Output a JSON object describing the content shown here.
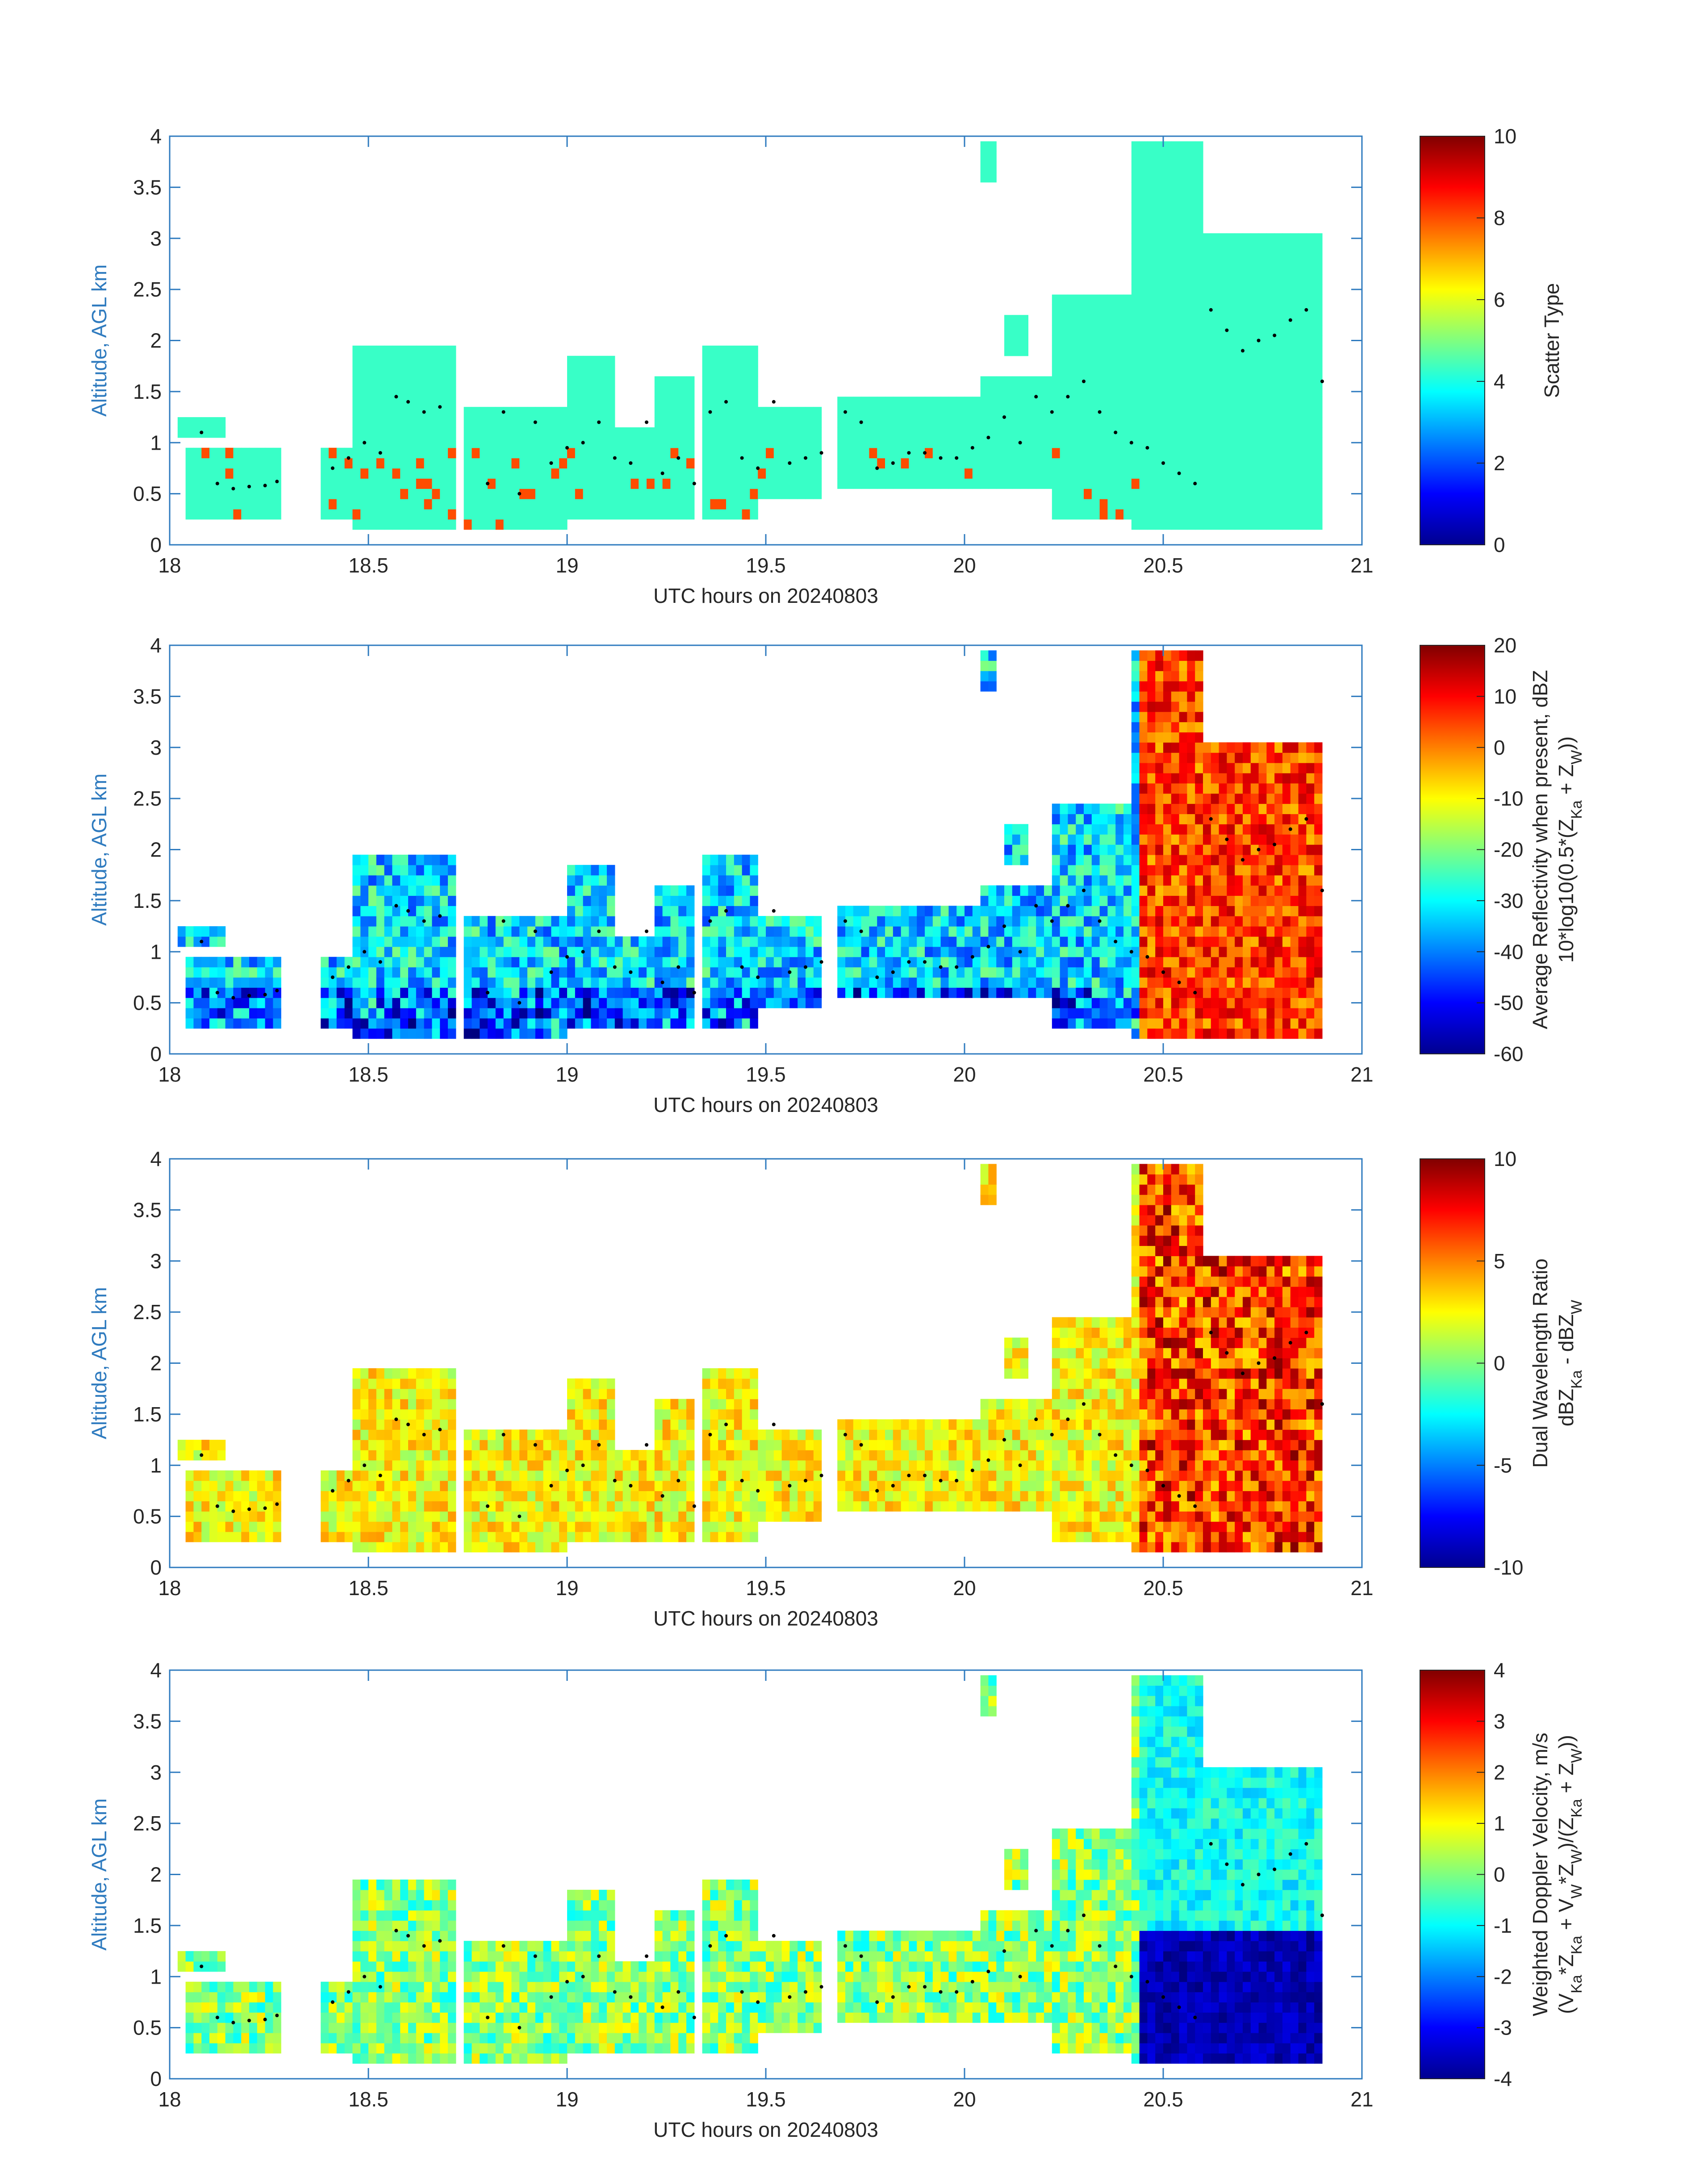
{
  "chart_data": [
    {
      "type": "heatmap",
      "xlabel": "UTC hours on 20240803",
      "ylabel": "Altitude, AGL km",
      "xlim": [
        18,
        21
      ],
      "ylim": [
        0,
        4
      ],
      "xticks": [
        "18",
        "18.5",
        "19",
        "19.5",
        "20",
        "20.5",
        "21"
      ],
      "yticks": [
        "0",
        "0.5",
        "1",
        "1.5",
        "2",
        "2.5",
        "3",
        "3.5",
        "4"
      ],
      "colorbar": {
        "label_lines": [
          "Scatter Type"
        ],
        "min": 0,
        "max": 10,
        "ticks": [
          "0",
          "2",
          "4",
          "6",
          "8",
          "10"
        ]
      },
      "description": "Scatter type classification; dominant class ~4 with sparse class ~8 columns"
    },
    {
      "type": "heatmap",
      "xlabel": "UTC hours on 20240803",
      "ylabel": "Altitude, AGL km",
      "xlim": [
        18,
        21
      ],
      "ylim": [
        0,
        4
      ],
      "xticks": [
        "18",
        "18.5",
        "19",
        "19.5",
        "20",
        "20.5",
        "21"
      ],
      "yticks": [
        "0",
        "0.5",
        "1",
        "1.5",
        "2",
        "2.5",
        "3",
        "3.5",
        "4"
      ],
      "colorbar": {
        "label_lines": [
          "Average Reflectivity when present, dBZ",
          "10*log10(0.5*(Z",
          "Ka",
          " + Z",
          "W",
          "))"
        ],
        "min": -60,
        "max": 20,
        "ticks": [
          "-60",
          "-50",
          "-40",
          "-30",
          "-20",
          "-10",
          "0",
          "10",
          "20"
        ]
      },
      "description": "Reflectivity mostly -50 to -20 dBZ before 20.3 h, 0 to 20 dBZ in deep cloud after 20.4 h"
    },
    {
      "type": "heatmap",
      "xlabel": "UTC hours on 20240803",
      "ylabel": "Altitude, AGL km",
      "xlim": [
        18,
        21
      ],
      "ylim": [
        0,
        4
      ],
      "xticks": [
        "18",
        "18.5",
        "19",
        "19.5",
        "20",
        "20.5",
        "21"
      ],
      "yticks": [
        "0",
        "0.5",
        "1",
        "1.5",
        "2",
        "2.5",
        "3",
        "3.5",
        "4"
      ],
      "colorbar": {
        "label_lines": [
          "Dual Wavelength Ratio",
          "dBZ",
          "Ka",
          " - dBZ",
          "W"
        ],
        "min": -10,
        "max": 10,
        "ticks": [
          "-10",
          "-5",
          "0",
          "5",
          "10"
        ]
      },
      "description": "DWR mostly 0 to 4 dB, up to 10 dB in deep cloud after 20.4 h"
    },
    {
      "type": "heatmap",
      "xlabel": "UTC hours on 20240803",
      "ylabel": "Altitude, AGL km",
      "xlim": [
        18,
        21
      ],
      "ylim": [
        0,
        4
      ],
      "xticks": [
        "18",
        "18.5",
        "19",
        "19.5",
        "20",
        "20.5",
        "21"
      ],
      "yticks": [
        "0",
        "0.5",
        "1",
        "1.5",
        "2",
        "2.5",
        "3",
        "3.5",
        "4"
      ],
      "colorbar": {
        "label_lines": [
          "Weighted Doppler Velocity, m/s",
          "(V",
          "Ka",
          "*Z",
          "Ka",
          " + V",
          "W",
          "*Z",
          "W",
          ")/(Z",
          "Ka",
          " + Z",
          "W",
          "))"
        ],
        "min": -4,
        "max": 4,
        "ticks": [
          "-4",
          "-3",
          "-2",
          "-1",
          "0",
          "1",
          "2",
          "3",
          "4"
        ]
      },
      "description": "Doppler velocity mostly -1 to 1 m/s, strongly negative (~-4) below 1.4 km after 20.4 h"
    }
  ],
  "cloud_boundary_dots": {
    "t": [
      18.08,
      18.12,
      18.16,
      18.2,
      18.24,
      18.27,
      18.41,
      18.45,
      18.49,
      18.53,
      18.57,
      18.6,
      18.64,
      18.68,
      18.8,
      18.84,
      18.88,
      18.92,
      18.96,
      19.0,
      19.04,
      19.08,
      19.12,
      19.16,
      19.2,
      19.24,
      19.28,
      19.32,
      19.36,
      19.4,
      19.44,
      19.48,
      19.52,
      19.56,
      19.6,
      19.64,
      19.7,
      19.74,
      19.78,
      19.82,
      19.86,
      19.9,
      19.94,
      19.98,
      20.02,
      20.06,
      20.1,
      20.14,
      20.18,
      20.22,
      20.26,
      20.3,
      20.34,
      20.38,
      20.42,
      20.46,
      20.5,
      20.54,
      20.58,
      20.62,
      20.66,
      20.7,
      20.74,
      20.78,
      20.82,
      20.86,
      20.9
    ],
    "h": [
      1.1,
      0.6,
      0.55,
      0.57,
      0.58,
      0.62,
      0.75,
      0.85,
      1.0,
      0.9,
      1.45,
      1.4,
      1.3,
      1.35,
      0.6,
      1.3,
      0.5,
      1.2,
      0.8,
      0.95,
      1.0,
      1.2,
      0.85,
      0.8,
      1.2,
      0.7,
      0.85,
      0.6,
      1.3,
      1.4,
      0.85,
      0.75,
      1.4,
      0.8,
      0.85,
      0.9,
      1.3,
      1.2,
      0.75,
      0.8,
      0.9,
      0.9,
      0.85,
      0.85,
      0.95,
      1.05,
      1.25,
      1.0,
      1.45,
      1.3,
      1.45,
      1.6,
      1.3,
      1.1,
      1.0,
      0.95,
      0.8,
      0.7,
      0.6,
      2.3,
      2.1,
      1.9,
      2.0,
      2.05,
      2.2,
      2.3,
      1.6
    ]
  }
}
